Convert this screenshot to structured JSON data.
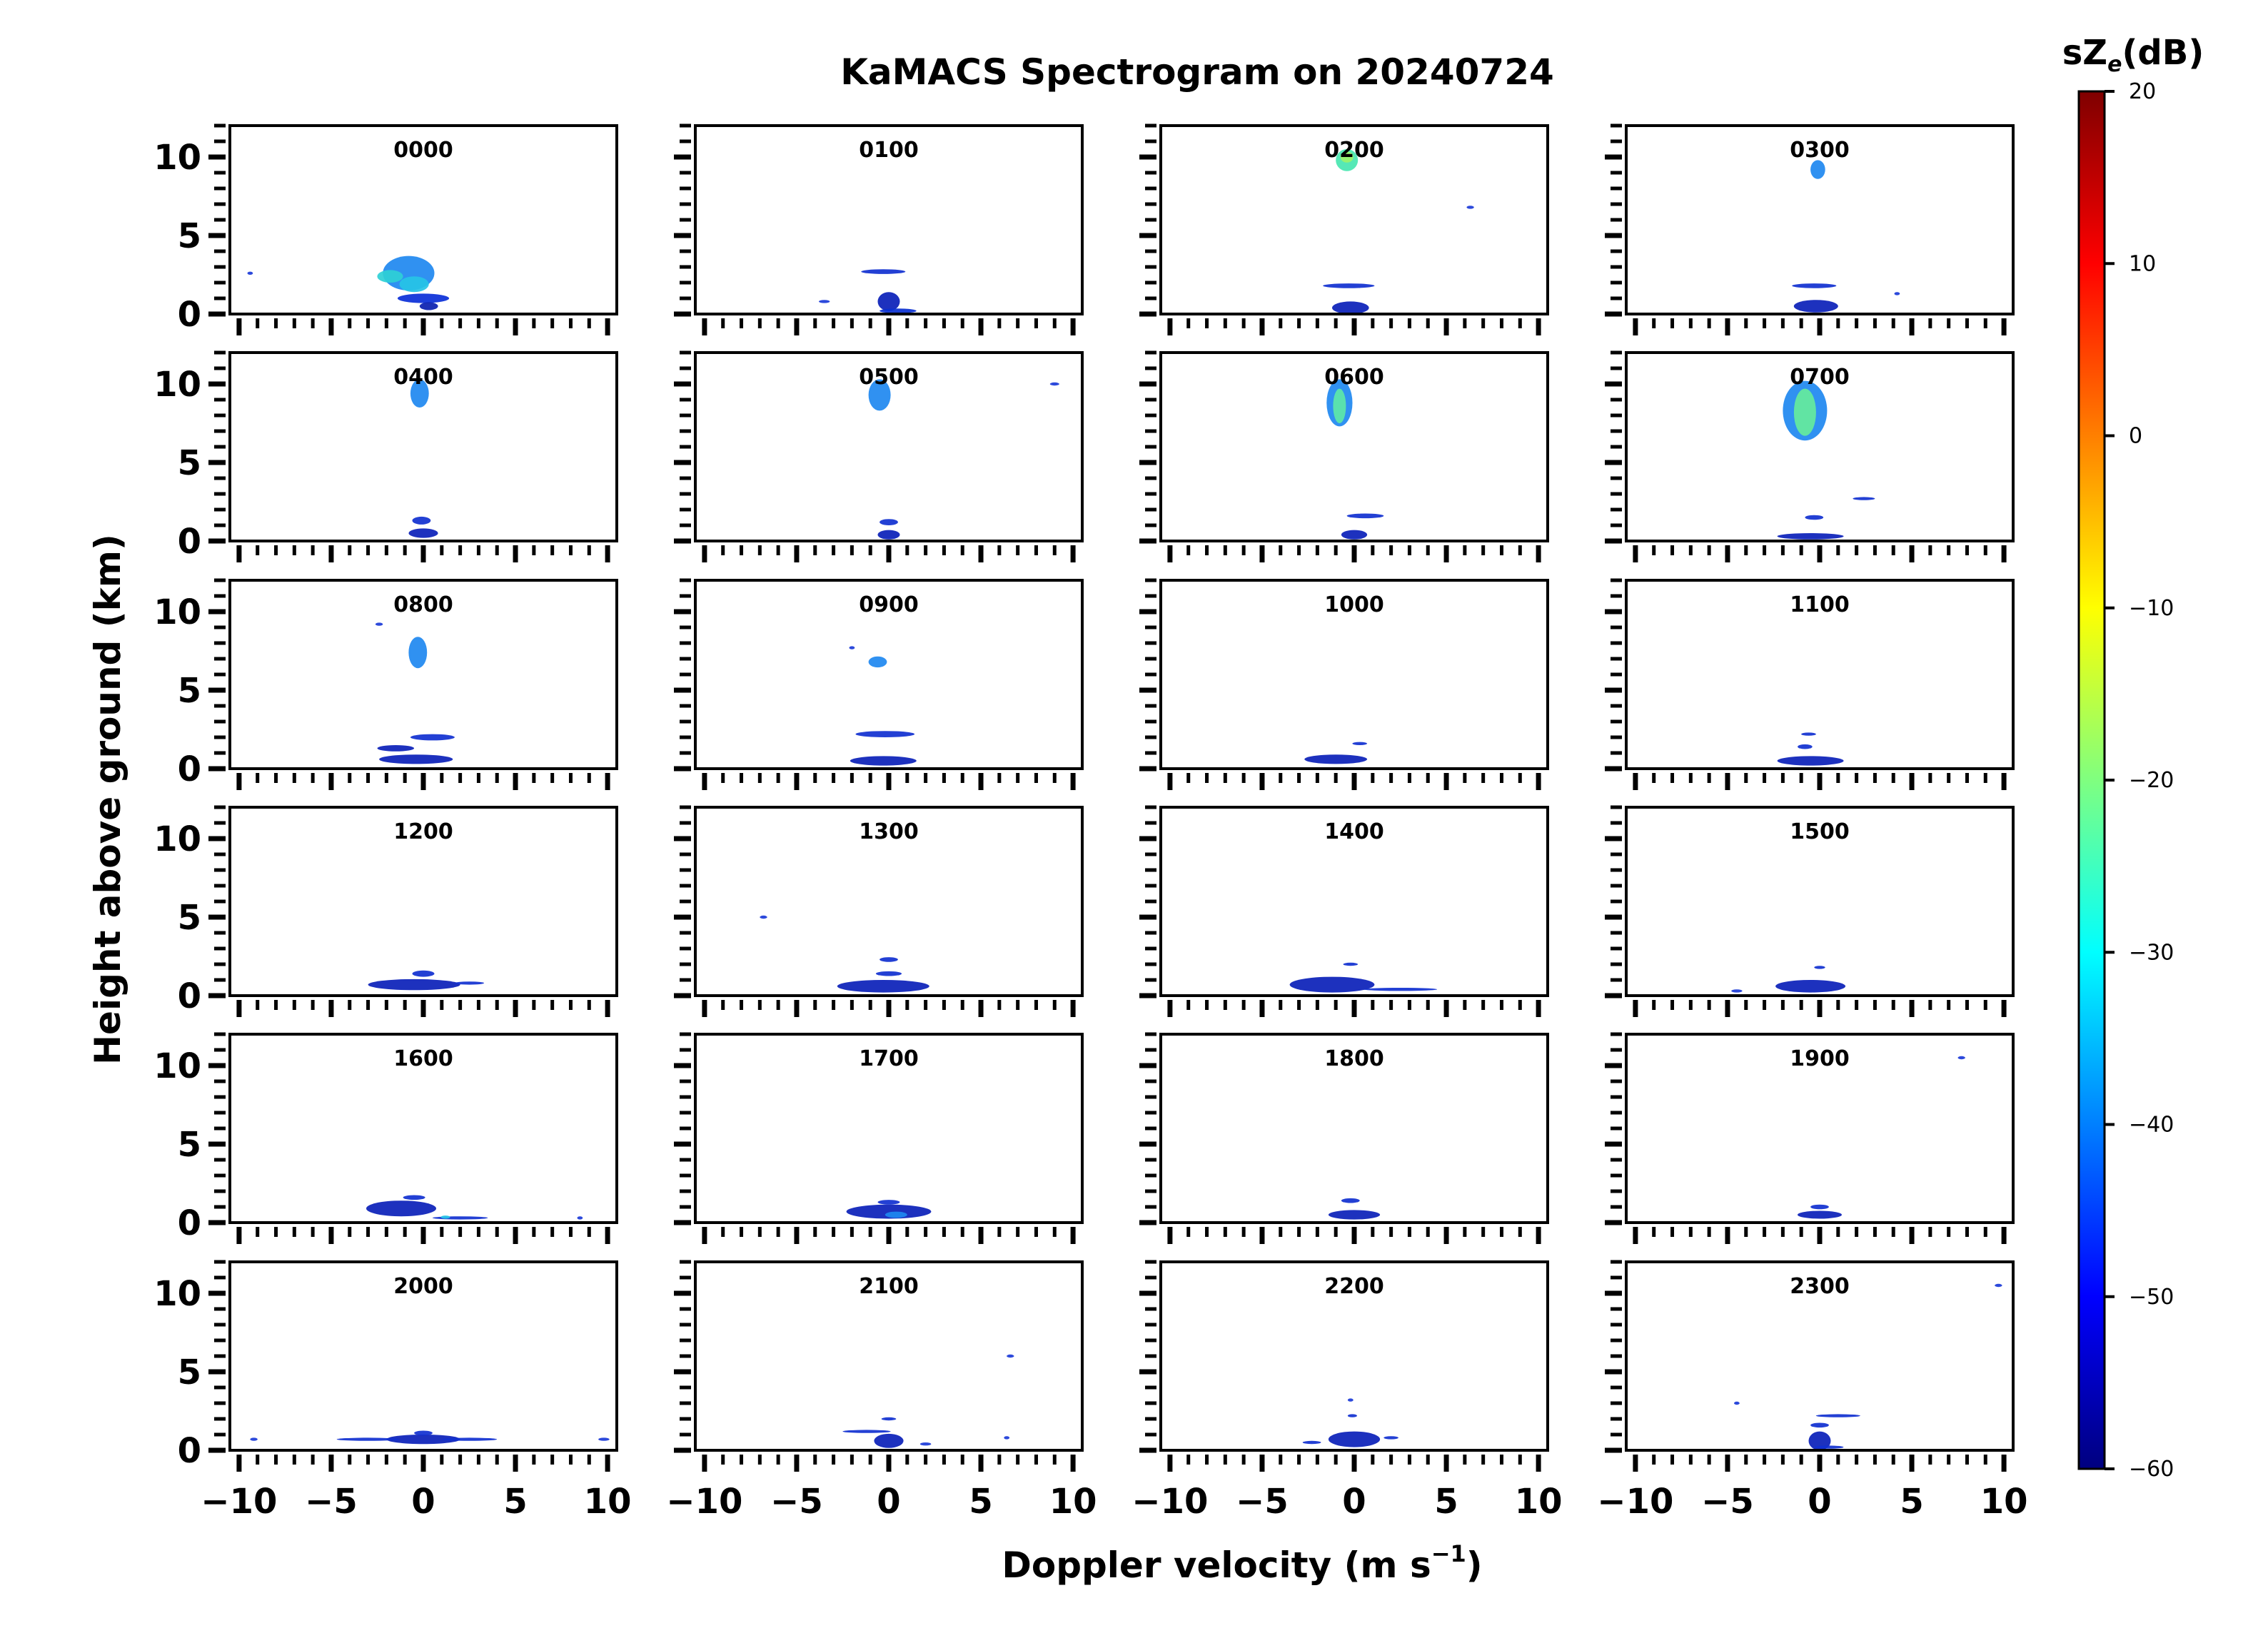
{
  "chart_data": {
    "type": "heatmap",
    "title": "KaMACS Spectrogram on 20240724",
    "xlabel_main": "Doppler velocity (m s",
    "xlabel_sup": "−1",
    "xlabel_close": ")",
    "ylabel": "Height above ground (km)",
    "xlim": [
      -10.5,
      10.5
    ],
    "ylim": [
      0,
      12
    ],
    "x_ticks": [
      -10,
      -5,
      0,
      5,
      10
    ],
    "x_tick_labels": [
      "−10",
      "−5",
      "0",
      "5",
      "10"
    ],
    "y_ticks": [
      0,
      5,
      10
    ],
    "y_tick_labels": [
      "0",
      "5",
      "10"
    ],
    "colorbar": {
      "label_main": "sZ",
      "label_sub": "e",
      "label_unit": "(dB)",
      "range": [
        -60,
        20
      ],
      "ticks": [
        20,
        10,
        0,
        -10,
        -20,
        -30,
        -40,
        -50,
        -60
      ],
      "tick_labels": [
        "20",
        "10",
        "0",
        "−10",
        "−20",
        "−30",
        "−40",
        "−50",
        "−60"
      ],
      "colormap": "jet"
    },
    "panels": [
      {
        "label": "0000",
        "blobs": [
          {
            "v": -0.8,
            "h": 2.6,
            "dv": 2.8,
            "dh": 2.2,
            "c": "#1e88f0"
          },
          {
            "v": -0.5,
            "h": 1.9,
            "dv": 1.6,
            "dh": 1.0,
            "c": "#27c4e6"
          },
          {
            "v": -1.8,
            "h": 2.4,
            "dv": 1.4,
            "dh": 0.8,
            "c": "#2fd0d6"
          },
          {
            "v": 0.0,
            "h": 1.0,
            "dv": 2.8,
            "dh": 0.6,
            "c": "#0a2fd8"
          },
          {
            "v": 0.3,
            "h": 0.5,
            "dv": 1.0,
            "dh": 0.5,
            "c": "#0a1fb0"
          },
          {
            "v": -9.4,
            "h": 2.6,
            "dv": 0.3,
            "dh": 0.2,
            "c": "#1a3ad8"
          }
        ]
      },
      {
        "label": "0100",
        "blobs": [
          {
            "v": -0.3,
            "h": 2.7,
            "dv": 2.4,
            "dh": 0.3,
            "c": "#1030d0"
          },
          {
            "v": 0.0,
            "h": 0.8,
            "dv": 1.2,
            "dh": 1.2,
            "c": "#0a20b8"
          },
          {
            "v": 0.5,
            "h": 0.2,
            "dv": 2.0,
            "dh": 0.3,
            "c": "#0a30d0"
          },
          {
            "v": -3.5,
            "h": 0.8,
            "dv": 0.6,
            "dh": 0.2,
            "c": "#1a3ad8"
          }
        ]
      },
      {
        "label": "0200",
        "blobs": [
          {
            "v": -0.4,
            "h": 9.8,
            "dv": 1.2,
            "dh": 1.4,
            "c": "#48e6b0"
          },
          {
            "v": -0.4,
            "h": 10.0,
            "dv": 0.7,
            "dh": 0.7,
            "c": "#9cf26a"
          },
          {
            "v": -0.3,
            "h": 1.8,
            "dv": 2.8,
            "dh": 0.3,
            "c": "#1030d0"
          },
          {
            "v": -0.2,
            "h": 0.4,
            "dv": 2.0,
            "dh": 0.8,
            "c": "#0a20b8"
          },
          {
            "v": 6.3,
            "h": 6.8,
            "dv": 0.4,
            "dh": 0.2,
            "c": "#1a3ad8"
          }
        ]
      },
      {
        "label": "0300",
        "blobs": [
          {
            "v": -0.1,
            "h": 9.2,
            "dv": 0.8,
            "dh": 1.2,
            "c": "#1e88f0"
          },
          {
            "v": -0.3,
            "h": 1.8,
            "dv": 2.4,
            "dh": 0.3,
            "c": "#1030d0"
          },
          {
            "v": -0.2,
            "h": 0.5,
            "dv": 2.4,
            "dh": 0.8,
            "c": "#0a20b8"
          },
          {
            "v": 4.2,
            "h": 1.3,
            "dv": 0.3,
            "dh": 0.2,
            "c": "#1a3ad8"
          }
        ]
      },
      {
        "label": "0400",
        "blobs": [
          {
            "v": -0.2,
            "h": 9.4,
            "dv": 1.0,
            "dh": 1.8,
            "c": "#1e88f0"
          },
          {
            "v": -0.1,
            "h": 1.3,
            "dv": 1.0,
            "dh": 0.5,
            "c": "#1030d0"
          },
          {
            "v": 0.0,
            "h": 0.5,
            "dv": 1.6,
            "dh": 0.6,
            "c": "#0a20b8"
          }
        ]
      },
      {
        "label": "0500",
        "blobs": [
          {
            "v": -0.5,
            "h": 9.3,
            "dv": 1.2,
            "dh": 2.0,
            "c": "#1e88f0"
          },
          {
            "v": 9.0,
            "h": 10.0,
            "dv": 0.5,
            "dh": 0.2,
            "c": "#1a3ad8"
          },
          {
            "v": 0.0,
            "h": 1.2,
            "dv": 1.0,
            "dh": 0.4,
            "c": "#1030d0"
          },
          {
            "v": 0.0,
            "h": 0.4,
            "dv": 1.2,
            "dh": 0.6,
            "c": "#0a20b8"
          }
        ]
      },
      {
        "label": "0600",
        "blobs": [
          {
            "v": -0.8,
            "h": 8.8,
            "dv": 1.4,
            "dh": 3.0,
            "c": "#1e88f0"
          },
          {
            "v": -0.8,
            "h": 8.6,
            "dv": 0.7,
            "dh": 2.2,
            "c": "#5ee8a8"
          },
          {
            "v": 0.6,
            "h": 1.6,
            "dv": 2.0,
            "dh": 0.3,
            "c": "#1030d0"
          },
          {
            "v": 0.0,
            "h": 0.4,
            "dv": 1.4,
            "dh": 0.6,
            "c": "#0a20b8"
          }
        ]
      },
      {
        "label": "0700",
        "blobs": [
          {
            "v": -0.8,
            "h": 8.3,
            "dv": 2.4,
            "dh": 3.8,
            "c": "#1e88f0"
          },
          {
            "v": -0.8,
            "h": 8.2,
            "dv": 1.2,
            "dh": 3.0,
            "c": "#66ec9c"
          },
          {
            "v": -0.3,
            "h": 1.5,
            "dv": 1.0,
            "dh": 0.3,
            "c": "#1030d0"
          },
          {
            "v": 2.4,
            "h": 2.7,
            "dv": 1.2,
            "dh": 0.2,
            "c": "#1030d0"
          },
          {
            "v": -0.5,
            "h": 0.3,
            "dv": 3.6,
            "dh": 0.4,
            "c": "#0a20b8"
          }
        ]
      },
      {
        "label": "0800",
        "blobs": [
          {
            "v": -0.3,
            "h": 7.4,
            "dv": 1.0,
            "dh": 2.0,
            "c": "#1e88f0"
          },
          {
            "v": -2.4,
            "h": 9.2,
            "dv": 0.4,
            "dh": 0.2,
            "c": "#1a3ad8"
          },
          {
            "v": 0.5,
            "h": 2.0,
            "dv": 2.4,
            "dh": 0.4,
            "c": "#1030d0"
          },
          {
            "v": -0.4,
            "h": 0.6,
            "dv": 4.0,
            "dh": 0.6,
            "c": "#0a20b8"
          },
          {
            "v": -1.5,
            "h": 1.3,
            "dv": 2.0,
            "dh": 0.4,
            "c": "#0a20b8"
          }
        ]
      },
      {
        "label": "0900",
        "blobs": [
          {
            "v": -0.6,
            "h": 6.8,
            "dv": 1.0,
            "dh": 0.7,
            "c": "#1e88f0"
          },
          {
            "v": -2.0,
            "h": 7.7,
            "dv": 0.3,
            "dh": 0.2,
            "c": "#1a3ad8"
          },
          {
            "v": -0.2,
            "h": 2.2,
            "dv": 3.2,
            "dh": 0.4,
            "c": "#1030d0"
          },
          {
            "v": -0.3,
            "h": 0.5,
            "dv": 3.6,
            "dh": 0.6,
            "c": "#0a20b8"
          }
        ]
      },
      {
        "label": "1000",
        "blobs": [
          {
            "v": -1.0,
            "h": 0.6,
            "dv": 3.4,
            "dh": 0.6,
            "c": "#0a20b8"
          },
          {
            "v": 0.3,
            "h": 1.6,
            "dv": 0.8,
            "dh": 0.2,
            "c": "#1030d0"
          }
        ]
      },
      {
        "label": "1100",
        "blobs": [
          {
            "v": -0.5,
            "h": 0.5,
            "dv": 3.6,
            "dh": 0.6,
            "c": "#0a20b8"
          },
          {
            "v": -0.6,
            "h": 2.2,
            "dv": 0.8,
            "dh": 0.2,
            "c": "#1030d0"
          },
          {
            "v": -0.8,
            "h": 1.4,
            "dv": 0.8,
            "dh": 0.3,
            "c": "#1030d0"
          }
        ]
      },
      {
        "label": "1200",
        "blobs": [
          {
            "v": -0.5,
            "h": 0.7,
            "dv": 5.0,
            "dh": 0.7,
            "c": "#0a20b8"
          },
          {
            "v": 0.0,
            "h": 1.4,
            "dv": 1.2,
            "dh": 0.4,
            "c": "#1030d0"
          },
          {
            "v": 2.5,
            "h": 0.8,
            "dv": 1.6,
            "dh": 0.2,
            "c": "#1030d0"
          }
        ]
      },
      {
        "label": "1300",
        "blobs": [
          {
            "v": -0.3,
            "h": 0.6,
            "dv": 5.0,
            "dh": 0.8,
            "c": "#0a20b8"
          },
          {
            "v": 0.0,
            "h": 1.4,
            "dv": 1.4,
            "dh": 0.3,
            "c": "#1030d0"
          },
          {
            "v": 0.0,
            "h": 2.3,
            "dv": 1.0,
            "dh": 0.3,
            "c": "#1030d0"
          },
          {
            "v": -6.8,
            "h": 5.0,
            "dv": 0.4,
            "dh": 0.2,
            "c": "#1a3ad8"
          }
        ]
      },
      {
        "label": "1400",
        "blobs": [
          {
            "v": -1.2,
            "h": 0.7,
            "dv": 4.6,
            "dh": 1.0,
            "c": "#0a20b8"
          },
          {
            "v": 2.5,
            "h": 0.4,
            "dv": 4.0,
            "dh": 0.2,
            "c": "#1030d0"
          },
          {
            "v": -0.2,
            "h": 2.0,
            "dv": 0.8,
            "dh": 0.2,
            "c": "#1030d0"
          }
        ]
      },
      {
        "label": "1500",
        "blobs": [
          {
            "v": -0.5,
            "h": 0.6,
            "dv": 3.8,
            "dh": 0.8,
            "c": "#0a20b8"
          },
          {
            "v": 0.0,
            "h": 1.8,
            "dv": 0.6,
            "dh": 0.2,
            "c": "#1030d0"
          },
          {
            "v": -4.5,
            "h": 0.3,
            "dv": 0.6,
            "dh": 0.2,
            "c": "#1a3ad8"
          }
        ]
      },
      {
        "label": "1600",
        "blobs": [
          {
            "v": -1.2,
            "h": 0.9,
            "dv": 3.8,
            "dh": 1.0,
            "c": "#0a20b8"
          },
          {
            "v": -0.5,
            "h": 1.6,
            "dv": 1.2,
            "dh": 0.3,
            "c": "#1030d0"
          },
          {
            "v": 2.0,
            "h": 0.3,
            "dv": 3.0,
            "dh": 0.2,
            "c": "#1030d0"
          },
          {
            "v": 1.2,
            "h": 0.35,
            "dv": 0.5,
            "dh": 0.2,
            "c": "#27c4e6"
          },
          {
            "v": 8.5,
            "h": 0.3,
            "dv": 0.3,
            "dh": 0.2,
            "c": "#1a3ad8"
          }
        ]
      },
      {
        "label": "1700",
        "blobs": [
          {
            "v": 0.0,
            "h": 0.7,
            "dv": 4.6,
            "dh": 0.9,
            "c": "#0a20b8"
          },
          {
            "v": 0.0,
            "h": 1.3,
            "dv": 1.2,
            "dh": 0.3,
            "c": "#1030d0"
          },
          {
            "v": 0.4,
            "h": 0.5,
            "dv": 1.2,
            "dh": 0.4,
            "c": "#1e88f0"
          }
        ]
      },
      {
        "label": "1800",
        "blobs": [
          {
            "v": 0.0,
            "h": 0.5,
            "dv": 2.8,
            "dh": 0.6,
            "c": "#0a20b8"
          },
          {
            "v": -0.2,
            "h": 1.4,
            "dv": 1.0,
            "dh": 0.3,
            "c": "#1030d0"
          }
        ]
      },
      {
        "label": "1900",
        "blobs": [
          {
            "v": 0.0,
            "h": 0.5,
            "dv": 2.4,
            "dh": 0.5,
            "c": "#0a20b8"
          },
          {
            "v": 0.0,
            "h": 1.0,
            "dv": 1.0,
            "dh": 0.3,
            "c": "#1030d0"
          },
          {
            "v": 7.7,
            "h": 10.5,
            "dv": 0.4,
            "dh": 0.2,
            "c": "#1a3ad8"
          }
        ]
      },
      {
        "label": "2000",
        "blobs": [
          {
            "v": 0.0,
            "h": 0.7,
            "dv": 4.0,
            "dh": 0.6,
            "c": "#0a20b8"
          },
          {
            "v": -3.0,
            "h": 0.7,
            "dv": 3.4,
            "dh": 0.2,
            "c": "#1030d0"
          },
          {
            "v": 2.5,
            "h": 0.7,
            "dv": 3.0,
            "dh": 0.2,
            "c": "#1030d0"
          },
          {
            "v": -9.2,
            "h": 0.7,
            "dv": 0.4,
            "dh": 0.2,
            "c": "#1a3ad8"
          },
          {
            "v": 9.8,
            "h": 0.7,
            "dv": 0.6,
            "dh": 0.2,
            "c": "#1a3ad8"
          },
          {
            "v": 0.0,
            "h": 1.1,
            "dv": 1.0,
            "dh": 0.3,
            "c": "#1030d0"
          }
        ]
      },
      {
        "label": "2100",
        "blobs": [
          {
            "v": 0.0,
            "h": 0.6,
            "dv": 1.6,
            "dh": 0.9,
            "c": "#0a20b8"
          },
          {
            "v": -1.2,
            "h": 1.2,
            "dv": 2.6,
            "dh": 0.2,
            "c": "#1030d0"
          },
          {
            "v": 0.0,
            "h": 2.0,
            "dv": 0.8,
            "dh": 0.2,
            "c": "#1030d0"
          },
          {
            "v": 6.6,
            "h": 6.0,
            "dv": 0.4,
            "dh": 0.2,
            "c": "#1a3ad8"
          },
          {
            "v": 6.4,
            "h": 0.8,
            "dv": 0.3,
            "dh": 0.2,
            "c": "#1a3ad8"
          },
          {
            "v": 2.0,
            "h": 0.4,
            "dv": 0.6,
            "dh": 0.2,
            "c": "#1a3ad8"
          }
        ]
      },
      {
        "label": "2200",
        "blobs": [
          {
            "v": 0.0,
            "h": 0.7,
            "dv": 2.8,
            "dh": 1.0,
            "c": "#0a20b8"
          },
          {
            "v": -2.3,
            "h": 0.5,
            "dv": 1.0,
            "dh": 0.2,
            "c": "#1030d0"
          },
          {
            "v": 2.0,
            "h": 0.8,
            "dv": 0.8,
            "dh": 0.2,
            "c": "#1030d0"
          },
          {
            "v": -0.1,
            "h": 2.2,
            "dv": 0.5,
            "dh": 0.2,
            "c": "#1030d0"
          },
          {
            "v": -0.2,
            "h": 3.2,
            "dv": 0.3,
            "dh": 0.2,
            "c": "#1a3ad8"
          }
        ]
      },
      {
        "label": "2300",
        "blobs": [
          {
            "v": 0.0,
            "h": 0.6,
            "dv": 1.2,
            "dh": 1.2,
            "c": "#0a20b8"
          },
          {
            "v": 1.0,
            "h": 2.2,
            "dv": 2.4,
            "dh": 0.2,
            "c": "#1030d0"
          },
          {
            "v": 0.0,
            "h": 1.6,
            "dv": 1.0,
            "dh": 0.3,
            "c": "#1030d0"
          },
          {
            "v": -4.5,
            "h": 3.0,
            "dv": 0.3,
            "dh": 0.2,
            "c": "#1a3ad8"
          },
          {
            "v": 9.7,
            "h": 10.5,
            "dv": 0.4,
            "dh": 0.2,
            "c": "#1a3ad8"
          },
          {
            "v": 0.5,
            "h": 0.2,
            "dv": 1.6,
            "dh": 0.2,
            "c": "#1030d0"
          }
        ]
      }
    ]
  }
}
